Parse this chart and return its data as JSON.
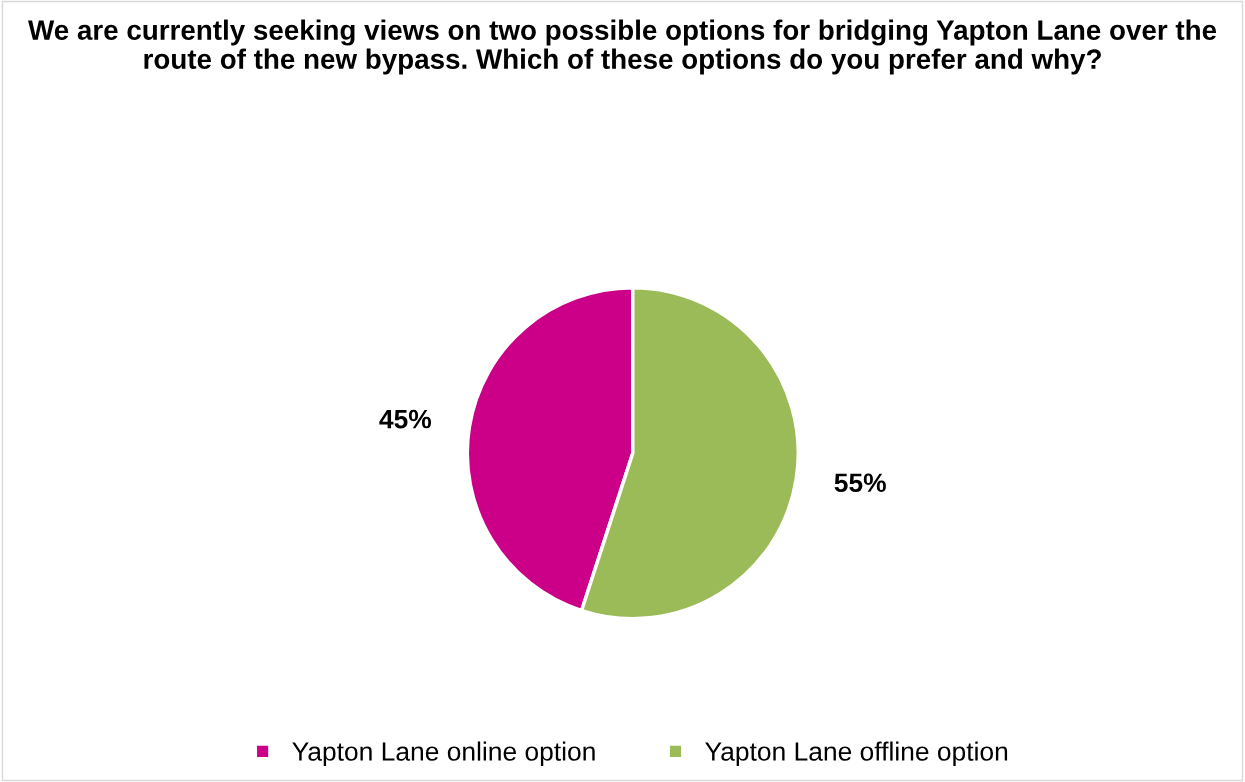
{
  "chart_data": {
    "type": "pie",
    "title": "We are currently seeking views on two possible options for bridging Yapton Lane over the route of the new bypass. Which of these options do you prefer and why?",
    "categories": [
      "Yapton Lane online option",
      "Yapton Lane offline option"
    ],
    "values": [
      45,
      55
    ],
    "value_labels": [
      "45%",
      "55%"
    ],
    "colors": [
      "#cc0088",
      "#9bbb59"
    ],
    "legend": "bottom"
  }
}
